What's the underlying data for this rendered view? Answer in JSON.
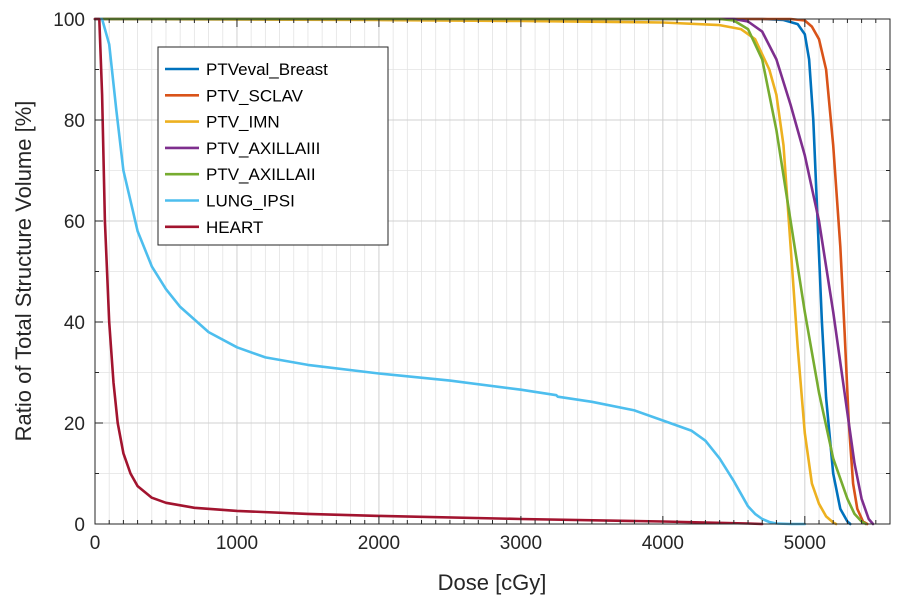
{
  "chart_data": {
    "type": "line",
    "title": "",
    "xlabel": "Dose [cGy]",
    "ylabel": "Ratio of Total Structure Volume [%]",
    "xlim": [
      0,
      5600
    ],
    "ylim": [
      0,
      100
    ],
    "xticks": [
      0,
      1000,
      2000,
      3000,
      4000,
      5000
    ],
    "yticks": [
      0,
      20,
      40,
      60,
      80,
      100
    ],
    "grid": true,
    "legend_position": "top-left",
    "series": [
      {
        "name": "PTVeval_Breast",
        "color": "#0072BD",
        "x": [
          0,
          4700,
          4850,
          4950,
          5000,
          5030,
          5060,
          5090,
          5120,
          5150,
          5200,
          5250,
          5300,
          5320
        ],
        "y": [
          100,
          100,
          99.8,
          99.0,
          97.0,
          92.0,
          80.0,
          60.0,
          40.0,
          25.0,
          10.0,
          3.0,
          0.5,
          0
        ]
      },
      {
        "name": "PTV_SCLAV",
        "color": "#D95319",
        "x": [
          0,
          4900,
          5000,
          5050,
          5100,
          5150,
          5200,
          5250,
          5280,
          5310,
          5340,
          5370,
          5410,
          5440
        ],
        "y": [
          100,
          100,
          99.7,
          98.5,
          96.0,
          90.0,
          75.0,
          55.0,
          38.0,
          20.0,
          8.0,
          3.0,
          0.5,
          0
        ]
      },
      {
        "name": "PTV_IMN",
        "color": "#EDB120",
        "x": [
          0,
          2000,
          3000,
          4000,
          4400,
          4550,
          4650,
          4750,
          4800,
          4850,
          4900,
          4950,
          5000,
          5050,
          5100,
          5150,
          5200,
          5220
        ],
        "y": [
          100,
          99.8,
          99.6,
          99.3,
          98.8,
          98.0,
          96.0,
          90.0,
          85.0,
          75.0,
          55.0,
          35.0,
          18.0,
          8.0,
          4.0,
          1.5,
          0.3,
          0
        ]
      },
      {
        "name": "PTV_AXILLAIII",
        "color": "#7E2F8E",
        "x": [
          0,
          4500,
          4600,
          4700,
          4800,
          4900,
          5000,
          5100,
          5200,
          5300,
          5350,
          5400,
          5450,
          5480
        ],
        "y": [
          100,
          100,
          99.5,
          97.5,
          92.0,
          83.0,
          73.0,
          60.0,
          42.0,
          22.0,
          12.0,
          5.0,
          1.0,
          0
        ]
      },
      {
        "name": "PTV_AXILLAII",
        "color": "#77AC30",
        "x": [
          0,
          4400,
          4500,
          4600,
          4700,
          4800,
          4900,
          5000,
          5100,
          5200,
          5300,
          5350,
          5400,
          5430
        ],
        "y": [
          100,
          100,
          99.7,
          98.0,
          92.0,
          78.0,
          60.0,
          42.0,
          26.0,
          13.0,
          5.0,
          2.0,
          0.5,
          0
        ]
      },
      {
        "name": "LUNG_IPSI",
        "color": "#4DBEEE",
        "x": [
          0,
          50,
          100,
          150,
          200,
          300,
          400,
          500,
          600,
          800,
          1000,
          1200,
          1500,
          2000,
          2500,
          3000,
          3250,
          3260,
          3500,
          3800,
          4000,
          4200,
          4300,
          4400,
          4500,
          4550,
          4600,
          4650,
          4700,
          4750,
          4800,
          4900,
          5000
        ],
        "y": [
          100,
          100,
          95,
          82,
          70,
          58,
          51,
          46.5,
          43,
          38,
          35,
          33,
          31.5,
          29.8,
          28.4,
          26.6,
          25.5,
          25.2,
          24.2,
          22.5,
          20.5,
          18.5,
          16.5,
          13.0,
          8.5,
          6.0,
          3.5,
          2.0,
          1.0,
          0.4,
          0.1,
          0,
          0
        ]
      },
      {
        "name": "HEART",
        "color": "#A2142F",
        "x": [
          0,
          30,
          50,
          70,
          100,
          130,
          160,
          200,
          250,
          300,
          400,
          500,
          700,
          1000,
          1500,
          2000,
          3000,
          4000,
          4600,
          4700
        ],
        "y": [
          100,
          100,
          85,
          60,
          40,
          28,
          20,
          14,
          10,
          7.5,
          5.2,
          4.2,
          3.2,
          2.6,
          2.0,
          1.6,
          1.0,
          0.5,
          0.1,
          0
        ]
      }
    ]
  }
}
